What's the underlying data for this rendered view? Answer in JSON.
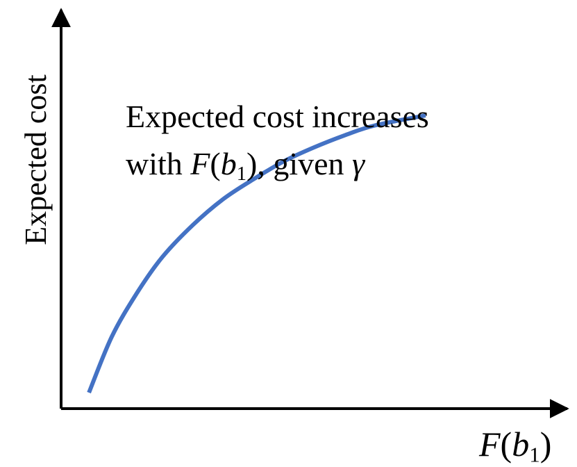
{
  "chart_data": {
    "type": "line",
    "title": "",
    "xlabel": {
      "func": "F",
      "open": "(",
      "var": "b",
      "sub": "1",
      "close": ")"
    },
    "ylabel": "Expected cost",
    "axes": {
      "ticks": false,
      "grid": false,
      "arrowheads": true
    },
    "xlim": [
      0,
      1
    ],
    "ylim": [
      0,
      1
    ],
    "annotation": {
      "line1": "Expected cost increases",
      "line2_prefix": "with ",
      "line2_func": "F",
      "line2_open": "(",
      "line2_var": "b",
      "line2_sub": "1",
      "line2_close": ")",
      "line2_mid": ", given ",
      "line2_symbol": "γ"
    },
    "series": [
      {
        "color": "#4472c4",
        "x": [
          0.055,
          0.1,
          0.15,
          0.2,
          0.26,
          0.32,
          0.38,
          0.44,
          0.5,
          0.56,
          0.62,
          0.72
        ],
        "y": [
          0.04,
          0.18,
          0.29,
          0.38,
          0.46,
          0.525,
          0.575,
          0.62,
          0.655,
          0.685,
          0.71,
          0.735
        ]
      }
    ]
  }
}
